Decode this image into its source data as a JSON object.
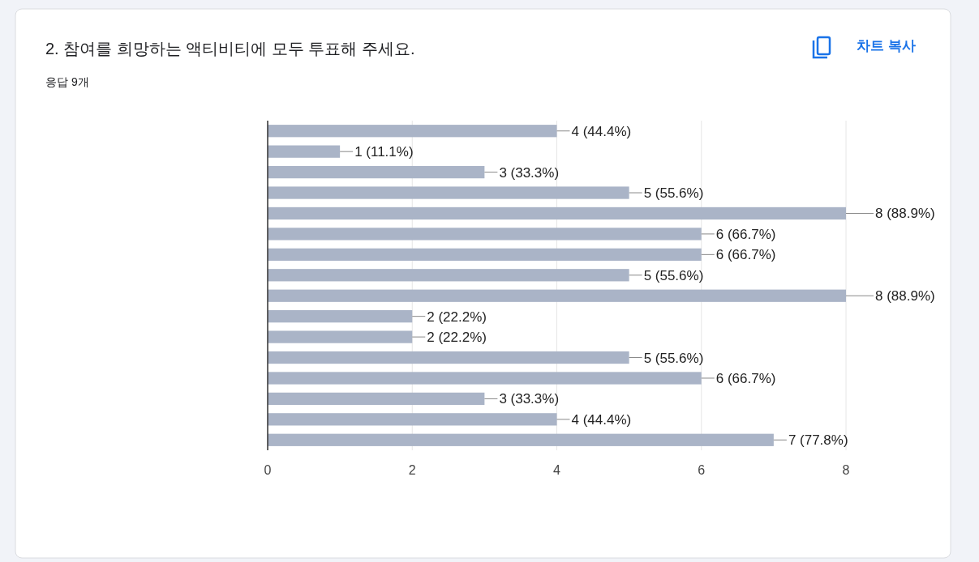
{
  "chart_data": {
    "type": "bar",
    "orientation": "horizontal",
    "title": "2. 참여를 희망하는 액티비티에 모두 투표해 주세요.",
    "subtitle": "응답 9개",
    "categories": [
      null,
      null,
      null,
      null,
      null,
      null,
      null,
      null,
      null,
      null,
      null,
      null,
      null,
      null,
      null,
      null
    ],
    "values": [
      4,
      1,
      3,
      5,
      8,
      6,
      6,
      5,
      8,
      2,
      2,
      5,
      6,
      3,
      4,
      7
    ],
    "value_labels": [
      "4 (44.4%)",
      "1 (11.1%)",
      "3 (33.3%)",
      "5 (55.6%)",
      "8 (88.9%)",
      "6 (66.7%)",
      "6 (66.7%)",
      "5 (55.6%)",
      "8 (88.9%)",
      "2 (22.2%)",
      "2 (22.2%)",
      "5 (55.6%)",
      "6 (66.7%)",
      "3 (33.3%)",
      "4 (44.4%)",
      "7 (77.8%)"
    ],
    "color": "#aab4c7",
    "xlim": [
      0,
      8
    ],
    "xticks": [
      0,
      2,
      4,
      6,
      8
    ],
    "grid": "x",
    "annotations": [
      "차트 복사"
    ]
  }
}
